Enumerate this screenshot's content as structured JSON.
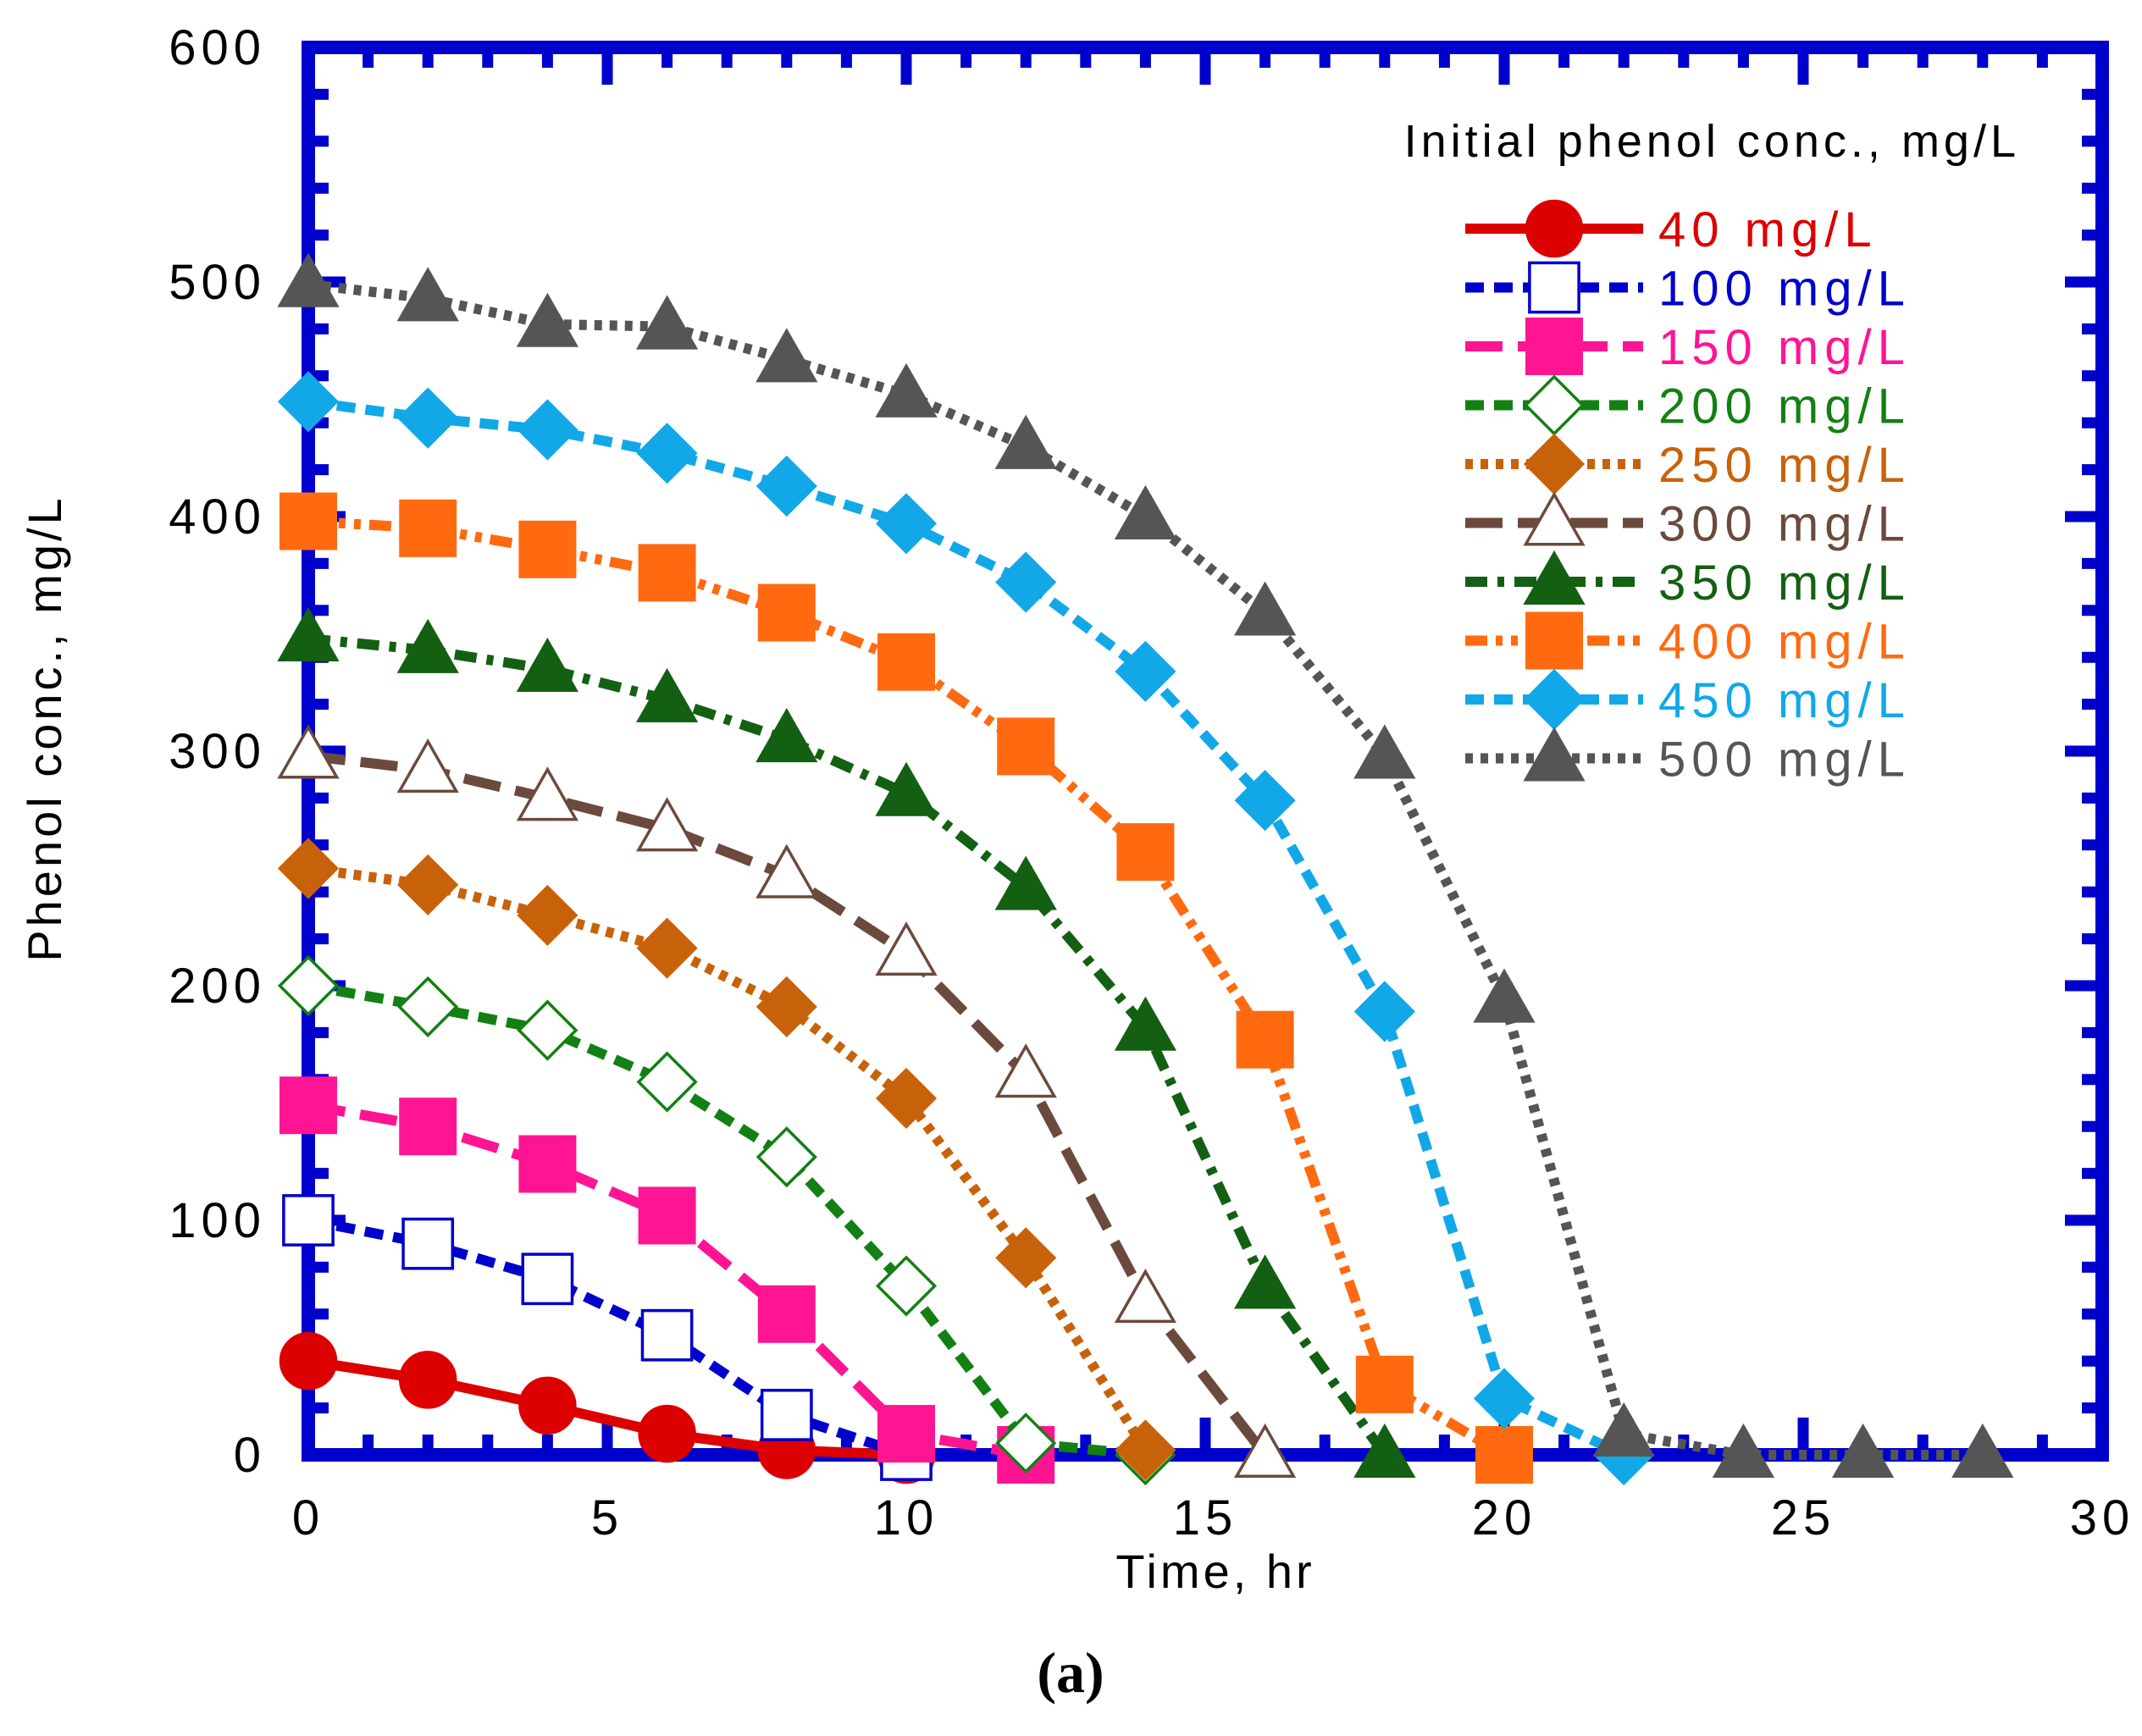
{
  "caption": "(a)",
  "chart_data": {
    "type": "line",
    "xlabel": "Time, hr",
    "ylabel": "Phenol conc., mg/L",
    "xlim": [
      0,
      30
    ],
    "ylim": [
      0,
      600
    ],
    "xticks": [
      0,
      5,
      10,
      15,
      20,
      25,
      30
    ],
    "yticks": [
      0,
      100,
      200,
      300,
      400,
      500,
      600
    ],
    "legend_title": "Initial phenol conc., mg/L",
    "legend_position": "top-right",
    "frame_color": "#0000cc",
    "x": [
      0,
      2,
      4,
      6,
      8,
      10,
      12,
      14,
      16,
      18,
      20,
      22,
      24,
      26,
      28
    ],
    "series": [
      {
        "name": "40 mg/L",
        "color": "#dd0000",
        "marker": "circle",
        "filled": true,
        "dash": "solid",
        "values": [
          40,
          32,
          21,
          9,
          2,
          0,
          null,
          null,
          null,
          null,
          null,
          null,
          null,
          null,
          null
        ]
      },
      {
        "name": "100 mg/L",
        "color": "#0000cc",
        "marker": "square",
        "filled": false,
        "dash": "dash",
        "values": [
          100,
          90,
          75,
          51,
          17,
          0,
          null,
          null,
          null,
          null,
          null,
          null,
          null,
          null,
          null
        ]
      },
      {
        "name": "150 mg/L",
        "color": "#ff1493",
        "marker": "square",
        "filled": true,
        "dash": "longdash",
        "values": [
          149,
          140,
          124,
          102,
          60,
          9,
          0,
          null,
          null,
          null,
          null,
          null,
          null,
          null,
          null
        ]
      },
      {
        "name": "200 mg/L",
        "color": "#138013",
        "marker": "diamond",
        "filled": false,
        "dash": "dash",
        "values": [
          200,
          191,
          181,
          159,
          127,
          72,
          5,
          0,
          null,
          null,
          null,
          null,
          null,
          null,
          null
        ]
      },
      {
        "name": "250 mg/L",
        "color": "#c8620a",
        "marker": "diamond",
        "filled": true,
        "dash": "dot",
        "values": [
          250,
          243,
          230,
          216,
          191,
          152,
          84,
          2,
          null,
          null,
          null,
          null,
          null,
          null,
          null
        ]
      },
      {
        "name": "300 mg/L",
        "color": "#6b4a3d",
        "marker": "triangle",
        "filled": false,
        "dash": "longdash",
        "values": [
          298,
          292,
          280,
          267,
          247,
          214,
          162,
          66,
          0,
          null,
          null,
          null,
          null,
          null,
          null
        ]
      },
      {
        "name": "350 mg/L",
        "color": "#136013",
        "marker": "triangle",
        "filled": true,
        "dash": "dashdot",
        "values": [
          348,
          343,
          335,
          322,
          305,
          282,
          242,
          182,
          72,
          0,
          null,
          null,
          null,
          null,
          null
        ]
      },
      {
        "name": "400 mg/L",
        "color": "#ff6a10",
        "marker": "square",
        "filled": true,
        "dash": "dashdotdot",
        "values": [
          398,
          395,
          386,
          376,
          359,
          338,
          302,
          257,
          177,
          30,
          0,
          null,
          null,
          null,
          null
        ]
      },
      {
        "name": "450 mg/L",
        "color": "#12a8e8",
        "marker": "diamond",
        "filled": true,
        "dash": "dash",
        "values": [
          449,
          442,
          437,
          427,
          413,
          397,
          372,
          334,
          279,
          189,
          24,
          0,
          null,
          null,
          null
        ]
      },
      {
        "name": "500 mg/L",
        "color": "#555555",
        "marker": "triangle",
        "filled": true,
        "dash": "dot",
        "values": [
          499,
          493,
          482,
          481,
          467,
          452,
          430,
          400,
          359,
          298,
          194,
          9,
          0,
          0,
          0
        ]
      }
    ]
  }
}
